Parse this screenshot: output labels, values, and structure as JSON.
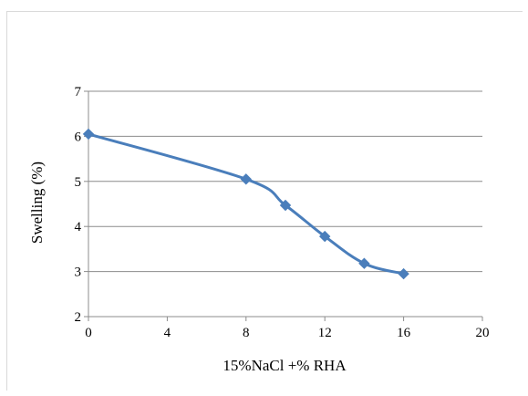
{
  "chart_data": {
    "type": "line",
    "title": "",
    "xlabel": "15%NaCl +% RHA",
    "ylabel": "Swelling  (%)",
    "xlim": [
      0,
      20
    ],
    "ylim": [
      2,
      7
    ],
    "x_ticks": [
      "0",
      "4",
      "8",
      "12",
      "16",
      "20"
    ],
    "y_ticks": [
      "2",
      "3",
      "4",
      "5",
      "6",
      "7"
    ],
    "grid": "horizontal",
    "legend": "none",
    "series": [
      {
        "x": [
          0,
          8,
          10,
          12,
          14,
          16
        ],
        "values": [
          6.05,
          5.05,
          4.47,
          3.78,
          3.18,
          2.95
        ],
        "color": "#4a7ebb",
        "marker": "diamond"
      }
    ]
  }
}
